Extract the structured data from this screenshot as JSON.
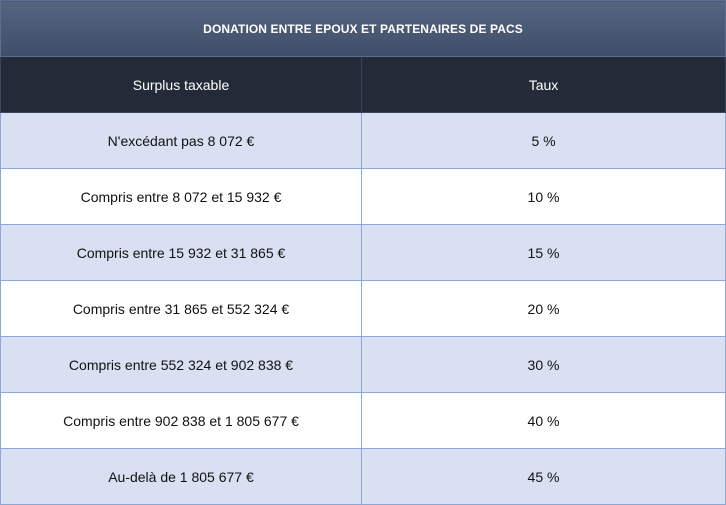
{
  "table": {
    "title": "DONATION ENTRE EPOUX ET PARTENAIRES DE PACS",
    "headers": [
      "Surplus taxable",
      "Taux"
    ],
    "rows": [
      {
        "surplus": "N'excédant pas 8 072 €",
        "taux": "5 %"
      },
      {
        "surplus": "Compris entre 8 072 et 15 932 €",
        "taux": "10 %"
      },
      {
        "surplus": "Compris entre 15 932 et 31 865 €",
        "taux": "15 %"
      },
      {
        "surplus": "Compris entre 31 865 et 552 324 €",
        "taux": "20 %"
      },
      {
        "surplus": "Compris entre 552 324 et 902 838 €",
        "taux": "30 %"
      },
      {
        "surplus": "Compris entre 902 838 et 1 805 677 €",
        "taux": "40 %"
      },
      {
        "surplus": "Au-delà de 1 805 677 €",
        "taux": "45 %"
      }
    ]
  },
  "colors": {
    "title_bg": "#4a5a77",
    "header_bg": "#232a38",
    "row_shaded_bg": "#d8e0f2",
    "row_plain_bg": "#ffffff",
    "border": "#8ea6d4"
  }
}
